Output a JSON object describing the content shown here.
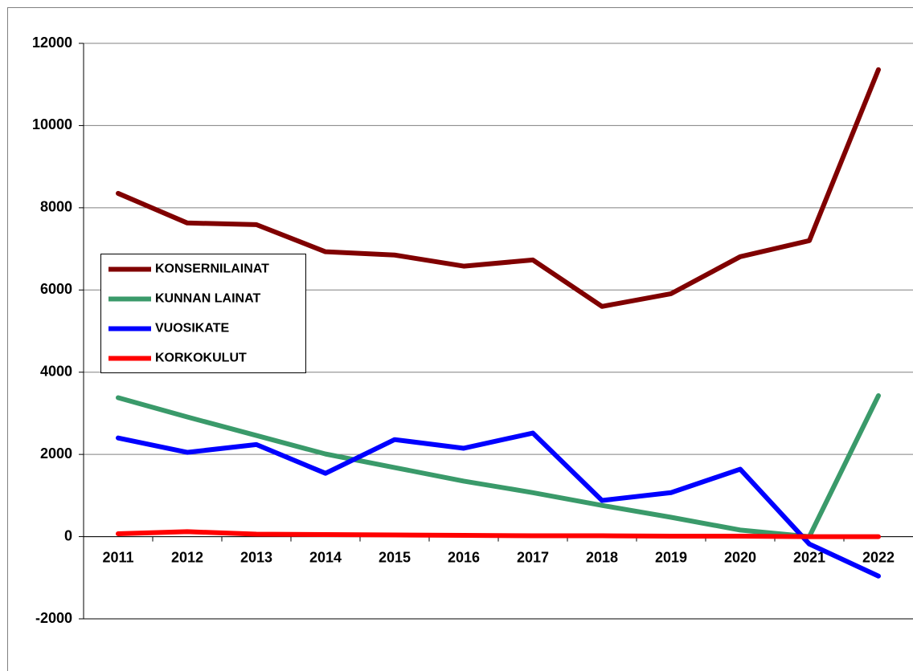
{
  "chart_data": {
    "type": "line",
    "categories": [
      "2011",
      "2012",
      "2013",
      "2014",
      "2015",
      "2016",
      "2017",
      "2018",
      "2019",
      "2020",
      "2021",
      "2022"
    ],
    "series": [
      {
        "name": "KONSERNILAINAT",
        "color": "#800000",
        "values": [
          8350,
          7630,
          7590,
          6930,
          6850,
          6580,
          6730,
          5600,
          5910,
          6810,
          7200,
          11360
        ]
      },
      {
        "name": "KUNNAN LAINAT",
        "color": "#3a9a6a",
        "values": [
          3380,
          2910,
          2460,
          2010,
          1680,
          1350,
          1070,
          760,
          470,
          160,
          0,
          3430
        ]
      },
      {
        "name": "VUOSIKATE",
        "color": "#0000ff",
        "values": [
          2400,
          2050,
          2240,
          1540,
          2360,
          2150,
          2520,
          880,
          1070,
          1640,
          -180,
          -960
        ]
      },
      {
        "name": "KORKOKULUT",
        "color": "#ff0000",
        "values": [
          70,
          120,
          60,
          50,
          40,
          30,
          20,
          20,
          10,
          10,
          0,
          0
        ]
      }
    ],
    "ylim": [
      -2000,
      12000
    ],
    "yticks": [
      -2000,
      0,
      2000,
      4000,
      6000,
      8000,
      10000,
      12000
    ],
    "grid": true,
    "legend": "left"
  }
}
